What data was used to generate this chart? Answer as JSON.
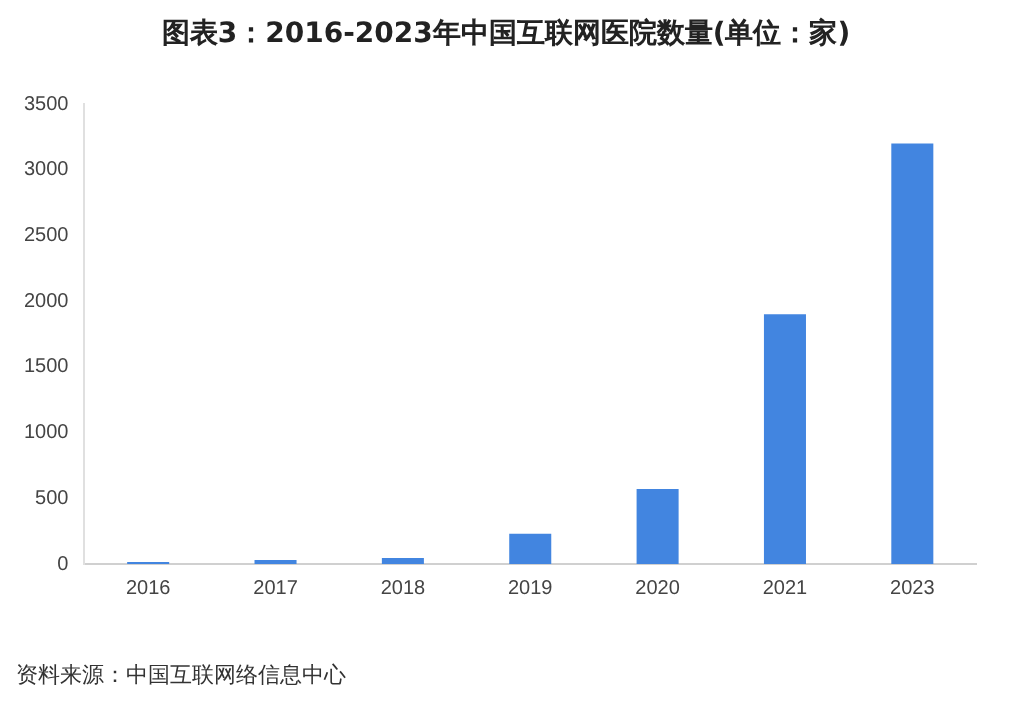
{
  "chart_data": {
    "type": "bar",
    "title": "图表3：2016-2023年中国互联网医院数量(单位：家)",
    "categories": [
      "2016",
      "2017",
      "2018",
      "2019",
      "2020",
      "2021",
      "2023"
    ],
    "values": [
      15,
      30,
      45,
      230,
      570,
      1900,
      3200
    ],
    "color": "#4285e0",
    "ylim": [
      0,
      3500
    ],
    "yticks": [
      0,
      500,
      1000,
      1500,
      2000,
      2500,
      3000,
      3500
    ],
    "grid": false,
    "annotations": [
      "资料来源：中国互联网络信息中心"
    ]
  }
}
